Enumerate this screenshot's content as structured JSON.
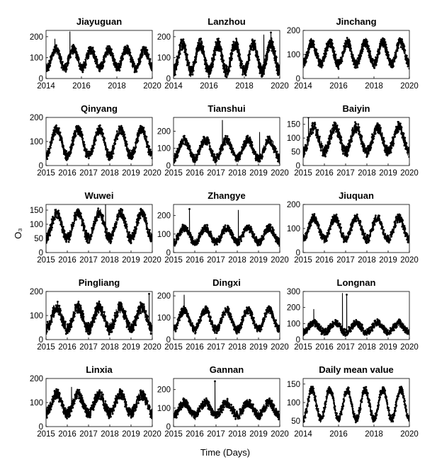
{
  "figure": {
    "xlabel": "Time (Days)",
    "ylabel": "O₃"
  },
  "chart_data": [
    {
      "type": "line",
      "title": "Jiayuguan",
      "x_ticks": [
        "2014",
        "2016",
        "2018",
        "2020"
      ],
      "xlim": [
        2014,
        2020
      ],
      "ylim": [
        0,
        230
      ],
      "y_ticks": [
        0,
        100,
        200
      ],
      "series": [
        {
          "base": 95,
          "amp": 45,
          "noise": 22,
          "peak": 0.55,
          "spikes": [
            [
              2015.35,
              225
            ],
            [
              2014.5,
              190
            ]
          ]
        }
      ]
    },
    {
      "type": "line",
      "title": "Lanzhou",
      "x_ticks": [
        "2014",
        "2016",
        "2018",
        "2020"
      ],
      "xlim": [
        2014,
        2020
      ],
      "ylim": [
        0,
        230
      ],
      "y_ticks": [
        0,
        100,
        200
      ],
      "series": [
        {
          "base": 100,
          "amp": 65,
          "noise": 30,
          "peak": 0.5,
          "spikes": [
            [
              2019.5,
              220
            ],
            [
              2019.1,
              210
            ]
          ]
        }
      ]
    },
    {
      "type": "line",
      "title": "Jinchang",
      "x_ticks": [
        "2014",
        "2016",
        "2018",
        "2020"
      ],
      "xlim": [
        2014,
        2020
      ],
      "ylim": [
        0,
        200
      ],
      "y_ticks": [
        0,
        100,
        200
      ],
      "series": [
        {
          "base": 105,
          "amp": 45,
          "noise": 20,
          "peak": 0.5,
          "spikes": []
        }
      ]
    },
    {
      "type": "line",
      "title": "Qinyang",
      "x_ticks": [
        "2015",
        "2016",
        "2017",
        "2018",
        "2019",
        "2020"
      ],
      "xlim": [
        2015,
        2020
      ],
      "ylim": [
        0,
        200
      ],
      "y_ticks": [
        0,
        100,
        200
      ],
      "series": [
        {
          "base": 95,
          "amp": 55,
          "noise": 20,
          "peak": 0.5,
          "spikes": []
        }
      ]
    },
    {
      "type": "line",
      "title": "Tianshui",
      "x_ticks": [
        "2015",
        "2016",
        "2017",
        "2018",
        "2019",
        "2020"
      ],
      "xlim": [
        2015,
        2020
      ],
      "ylim": [
        0,
        280
      ],
      "y_ticks": [
        0,
        100,
        200
      ],
      "series": [
        {
          "base": 95,
          "amp": 55,
          "noise": 25,
          "peak": 0.5,
          "spikes": [
            [
              2017.3,
              265
            ],
            [
              2019.05,
              195
            ]
          ]
        }
      ]
    },
    {
      "type": "line",
      "title": "Baiyin",
      "x_ticks": [
        "2015",
        "2016",
        "2017",
        "2018",
        "2019",
        "2020"
      ],
      "xlim": [
        2015,
        2020
      ],
      "ylim": [
        0,
        175
      ],
      "y_ticks": [
        0,
        50,
        100,
        150
      ],
      "series": [
        {
          "base": 95,
          "amp": 45,
          "noise": 20,
          "peak": 0.5,
          "spikes": [
            [
              2015.25,
              175
            ]
          ]
        }
      ]
    },
    {
      "type": "line",
      "title": "Wuwei",
      "x_ticks": [
        "2015",
        "2016",
        "2017",
        "2018",
        "2019",
        "2020"
      ],
      "xlim": [
        2015,
        2020
      ],
      "ylim": [
        0,
        170
      ],
      "y_ticks": [
        0,
        50,
        100,
        150
      ],
      "series": [
        {
          "base": 95,
          "amp": 45,
          "noise": 18,
          "peak": 0.5,
          "spikes": [
            [
              2017.8,
              170
            ]
          ]
        }
      ]
    },
    {
      "type": "line",
      "title": "Zhangye",
      "x_ticks": [
        "2015",
        "2016",
        "2017",
        "2018",
        "2019",
        "2020"
      ],
      "xlim": [
        2015,
        2020
      ],
      "ylim": [
        0,
        260
      ],
      "y_ticks": [
        0,
        100,
        200
      ],
      "series": [
        {
          "base": 95,
          "amp": 40,
          "noise": 20,
          "peak": 0.5,
          "spikes": [
            [
              2015.75,
              235
            ],
            [
              2018.05,
              230
            ]
          ]
        }
      ]
    },
    {
      "type": "line",
      "title": "Jiuquan",
      "x_ticks": [
        "2015",
        "2016",
        "2017",
        "2018",
        "2019",
        "2020"
      ],
      "xlim": [
        2015,
        2020
      ],
      "ylim": [
        0,
        200
      ],
      "y_ticks": [
        0,
        100,
        200
      ],
      "series": [
        {
          "base": 100,
          "amp": 45,
          "noise": 18,
          "peak": 0.5,
          "spikes": []
        }
      ]
    },
    {
      "type": "line",
      "title": "Pingliang",
      "x_ticks": [
        "2015",
        "2016",
        "2017",
        "2018",
        "2019",
        "2020"
      ],
      "xlim": [
        2015,
        2020
      ],
      "ylim": [
        0,
        200
      ],
      "y_ticks": [
        0,
        100,
        200
      ],
      "series": [
        {
          "base": 90,
          "amp": 45,
          "noise": 25,
          "peak": 0.5,
          "spikes": [
            [
              2019.85,
              190
            ]
          ]
        }
      ]
    },
    {
      "type": "line",
      "title": "Dingxi",
      "x_ticks": [
        "2015",
        "2016",
        "2017",
        "2018",
        "2019",
        "2020"
      ],
      "xlim": [
        2015,
        2020
      ],
      "ylim": [
        0,
        220
      ],
      "y_ticks": [
        0,
        100,
        200
      ],
      "series": [
        {
          "base": 90,
          "amp": 45,
          "noise": 18,
          "peak": 0.5,
          "spikes": [
            [
              2015.5,
              205
            ]
          ]
        }
      ]
    },
    {
      "type": "line",
      "title": "Longnan",
      "x_ticks": [
        "2015",
        "2016",
        "2017",
        "2018",
        "2019",
        "2020"
      ],
      "xlim": [
        2015,
        2020
      ],
      "ylim": [
        0,
        300
      ],
      "y_ticks": [
        0,
        100,
        200,
        300
      ],
      "series": [
        {
          "base": 75,
          "amp": 30,
          "noise": 22,
          "peak": 0.5,
          "spikes": [
            [
              2016.85,
              290
            ],
            [
              2017.05,
              280
            ],
            [
              2015.5,
              190
            ]
          ]
        }
      ]
    },
    {
      "type": "line",
      "title": "Linxia",
      "x_ticks": [
        "2015",
        "2016",
        "2017",
        "2018",
        "2019",
        "2020"
      ],
      "xlim": [
        2015,
        2020
      ],
      "ylim": [
        0,
        200
      ],
      "y_ticks": [
        0,
        100,
        200
      ],
      "series": [
        {
          "base": 95,
          "amp": 40,
          "noise": 22,
          "peak": 0.5,
          "spikes": [
            [
              2016.2,
              165
            ]
          ]
        }
      ]
    },
    {
      "type": "line",
      "title": "Gannan",
      "x_ticks": [
        "2015",
        "2016",
        "2017",
        "2018",
        "2019",
        "2020"
      ],
      "xlim": [
        2015,
        2020
      ],
      "ylim": [
        0,
        260
      ],
      "y_ticks": [
        0,
        100,
        200
      ],
      "series": [
        {
          "base": 95,
          "amp": 35,
          "noise": 25,
          "peak": 0.5,
          "spikes": [
            [
              2016.95,
              245
            ]
          ]
        }
      ]
    },
    {
      "type": "line",
      "title": "Daily mean value",
      "x_ticks": [
        "2014",
        "2016",
        "2018",
        "2020"
      ],
      "xlim": [
        2014,
        2020
      ],
      "ylim": [
        35,
        165
      ],
      "y_ticks": [
        50,
        100,
        150
      ],
      "series": [
        {
          "base": 95,
          "amp": 40,
          "noise": 10,
          "peak": 0.5,
          "spikes": []
        }
      ]
    }
  ]
}
